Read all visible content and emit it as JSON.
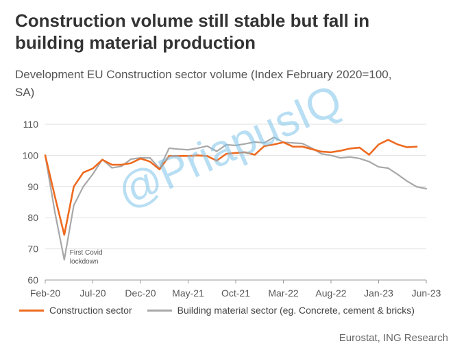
{
  "title_line1": "Construction volume still stable but fall in",
  "title_line2": "building material production",
  "subtitle_line1": "Development EU Construction sector volume (Index February 2020=100,",
  "subtitle_line2": "SA)",
  "source": "Eurostat, ING Research",
  "watermark": "@PriapusIQ",
  "colors": {
    "construction": "#ee6a1f",
    "building": "#a8a8a8",
    "grid": "#e2e2e2",
    "axis": "#999999"
  },
  "chart_data": {
    "type": "line",
    "x": [
      "Feb-20",
      "Mar-20",
      "Apr-20",
      "May-20",
      "Jun-20",
      "Jul-20",
      "Aug-20",
      "Sep-20",
      "Oct-20",
      "Nov-20",
      "Dec-20",
      "Jan-21",
      "Feb-21",
      "Mar-21",
      "Apr-21",
      "May-21",
      "Jun-21",
      "Jul-21",
      "Aug-21",
      "Sep-21",
      "Oct-21",
      "Nov-21",
      "Dec-21",
      "Jan-22",
      "Feb-22",
      "Mar-22",
      "Apr-22",
      "May-22",
      "Jun-22",
      "Jul-22",
      "Aug-22",
      "Sep-22",
      "Oct-22",
      "Nov-22",
      "Dec-22",
      "Jan-23",
      "Feb-23",
      "Mar-23",
      "Apr-23",
      "May-23",
      "Jun-23"
    ],
    "x_tick_labels": [
      "Feb-20",
      "Jul-20",
      "Dec-20",
      "May-21",
      "Oct-21",
      "Mar-22",
      "Aug-22",
      "Jan-23",
      "Jun-23"
    ],
    "series": [
      {
        "name": "Construction sector",
        "values": [
          100,
          87,
          74.5,
          90,
          94.5,
          95.8,
          98.6,
          97,
          97,
          97.5,
          99,
          98,
          95.5,
          99.8,
          99.8,
          99.8,
          100,
          99.8,
          98.3,
          100.5,
          100.8,
          101,
          100.2,
          103,
          103.5,
          104.2,
          102.8,
          102.8,
          102,
          101.2,
          101,
          101.5,
          102.2,
          102.5,
          100.2,
          103.5,
          105,
          103.5,
          102.6,
          102.8,
          null
        ]
      },
      {
        "name": "Building material sector (eg. Concrete, cement & bricks)",
        "values": [
          100,
          82,
          66.5,
          84,
          90,
          94,
          98.7,
          96,
          96.5,
          98.8,
          99.2,
          99.2,
          95.8,
          102.3,
          102,
          101.8,
          102.3,
          103,
          101.3,
          103.4,
          103.2,
          103.7,
          104.3,
          104,
          105.8,
          104.2,
          104,
          103.8,
          102.3,
          100.5,
          100,
          99.2,
          99.5,
          99,
          98,
          96.3,
          95.9,
          93.9,
          91.7,
          89.9,
          89.3
        ]
      }
    ],
    "ylim": [
      60,
      110
    ],
    "yticks": [
      60,
      70,
      80,
      90,
      100,
      110
    ],
    "grid": true,
    "legend": "bottom",
    "annotation": {
      "text_line1": "First Covid",
      "text_line2": "lockdown",
      "x": "Apr-20"
    }
  }
}
